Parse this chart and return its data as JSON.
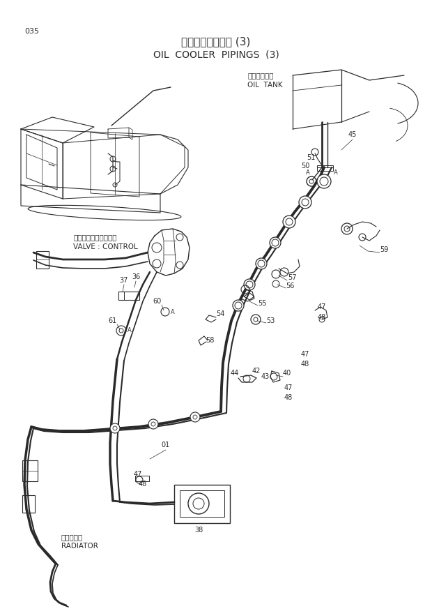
{
  "title_jp": "オイルクーラ配管 (3)",
  "title_en": "OIL  COOLER  PIPINGS  (3)",
  "page_number": "035",
  "bg_color": "#ffffff",
  "line_color": "#2a2a2a",
  "text_color": "#2a2a2a",
  "label_oil_tank_jp": "オイルタンク",
  "label_oil_tank_en": "OIL  TANK",
  "label_valve_jp": "バルブ：コントロール",
  "label_valve_en": "VALVE : CONTROL",
  "label_radiator_jp": "ラジエータ",
  "label_radiator_en": "RADIATOR",
  "fig_width": 6.2,
  "fig_height": 8.76,
  "dpi": 100
}
